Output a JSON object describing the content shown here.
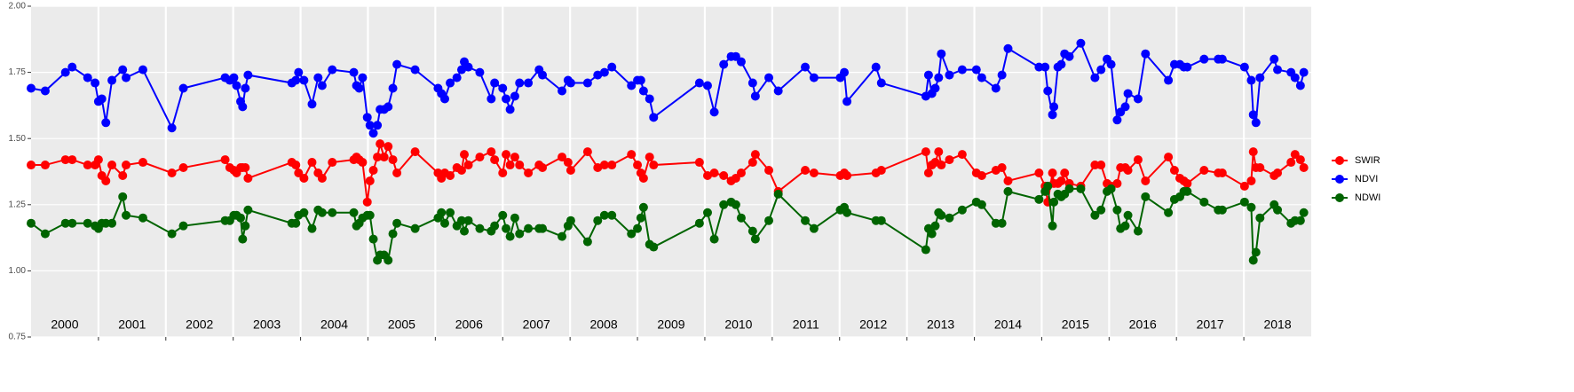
{
  "chart_data": {
    "type": "line",
    "x": [
      2000.0,
      2000.21,
      2000.51,
      2000.61,
      2000.84,
      2000.95,
      2001.0,
      2001.05,
      2001.11,
      2001.2,
      2001.36,
      2001.41,
      2001.66,
      2002.09,
      2002.26,
      2002.88,
      2002.95,
      2003.01,
      2003.05,
      2003.11,
      2003.14,
      2003.18,
      2003.22,
      2003.87,
      2003.93,
      2003.97,
      2004.05,
      2004.17,
      2004.26,
      2004.32,
      2004.47,
      2004.79,
      2004.83,
      2004.87,
      2004.92,
      2004.99,
      2005.03,
      2005.08,
      2005.14,
      2005.18,
      2005.24,
      2005.3,
      2005.37,
      2005.43,
      2005.7,
      2006.04,
      2006.09,
      2006.14,
      2006.22,
      2006.32,
      2006.39,
      2006.43,
      2006.49,
      2006.66,
      2006.83,
      2006.88,
      2007.0,
      2007.05,
      2007.11,
      2007.18,
      2007.25,
      2007.38,
      2007.54,
      2007.59,
      2007.88,
      2007.97,
      2008.01,
      2008.26,
      2008.41,
      2008.51,
      2008.62,
      2008.91,
      2009.0,
      2009.05,
      2009.09,
      2009.18,
      2009.24,
      2009.92,
      2010.04,
      2010.14,
      2010.28,
      2010.39,
      2010.46,
      2010.54,
      2010.71,
      2010.75,
      2010.95,
      2011.09,
      2011.49,
      2011.62,
      2012.01,
      2012.07,
      2012.11,
      2012.54,
      2012.62,
      2013.28,
      2013.32,
      2013.37,
      2013.42,
      2013.47,
      2013.51,
      2013.63,
      2013.82,
      2014.03,
      2014.11,
      2014.32,
      2014.41,
      2014.5,
      2014.96,
      2015.05,
      2015.09,
      2015.16,
      2015.18,
      2015.24,
      2015.29,
      2015.34,
      2015.41,
      2015.58,
      2015.79,
      2015.88,
      2015.97,
      2016.03,
      2016.12,
      2016.17,
      2016.24,
      2016.28,
      2016.43,
      2016.54,
      2016.88,
      2016.97,
      2017.05,
      2017.11,
      2017.16,
      2017.41,
      2017.62,
      2017.68,
      2018.01,
      2018.11,
      2018.14,
      2018.18,
      2018.24,
      2018.45,
      2018.5,
      2018.7,
      2018.76,
      2018.84,
      2018.89
    ],
    "series": [
      {
        "name": "SWIR",
        "color": "#ff0000",
        "values": [
          1.4,
          1.4,
          1.42,
          1.42,
          1.4,
          1.4,
          1.42,
          1.36,
          1.34,
          1.4,
          1.36,
          1.4,
          1.41,
          1.37,
          1.39,
          1.42,
          1.39,
          1.38,
          1.37,
          1.39,
          1.39,
          1.39,
          1.35,
          1.41,
          1.4,
          1.37,
          1.35,
          1.41,
          1.37,
          1.35,
          1.41,
          1.42,
          1.43,
          1.42,
          1.41,
          1.26,
          1.34,
          1.38,
          1.43,
          1.48,
          1.43,
          1.47,
          1.42,
          1.37,
          1.45,
          1.37,
          1.35,
          1.37,
          1.36,
          1.39,
          1.38,
          1.44,
          1.4,
          1.43,
          1.45,
          1.42,
          1.37,
          1.44,
          1.4,
          1.43,
          1.4,
          1.37,
          1.4,
          1.39,
          1.43,
          1.41,
          1.38,
          1.45,
          1.39,
          1.4,
          1.4,
          1.44,
          1.4,
          1.37,
          1.35,
          1.43,
          1.4,
          1.41,
          1.36,
          1.37,
          1.36,
          1.34,
          1.35,
          1.37,
          1.41,
          1.44,
          1.38,
          1.3,
          1.38,
          1.37,
          1.36,
          1.37,
          1.36,
          1.37,
          1.38,
          1.45,
          1.37,
          1.4,
          1.41,
          1.45,
          1.4,
          1.42,
          1.44,
          1.37,
          1.36,
          1.38,
          1.39,
          1.34,
          1.37,
          1.32,
          1.26,
          1.37,
          1.33,
          1.33,
          1.34,
          1.37,
          1.33,
          1.32,
          1.4,
          1.4,
          1.33,
          1.32,
          1.33,
          1.39,
          1.39,
          1.38,
          1.42,
          1.34,
          1.43,
          1.38,
          1.35,
          1.34,
          1.33,
          1.38,
          1.37,
          1.37,
          1.32,
          1.34,
          1.45,
          1.39,
          1.39,
          1.36,
          1.37,
          1.41,
          1.44,
          1.42,
          1.39
        ]
      },
      {
        "name": "NDVI",
        "color": "#0000ff",
        "values": [
          1.69,
          1.68,
          1.75,
          1.77,
          1.73,
          1.71,
          1.64,
          1.65,
          1.56,
          1.72,
          1.76,
          1.73,
          1.76,
          1.54,
          1.69,
          1.73,
          1.72,
          1.73,
          1.7,
          1.64,
          1.62,
          1.69,
          1.74,
          1.71,
          1.72,
          1.75,
          1.72,
          1.63,
          1.73,
          1.7,
          1.76,
          1.75,
          1.7,
          1.69,
          1.73,
          1.58,
          1.55,
          1.52,
          1.55,
          1.61,
          1.61,
          1.62,
          1.69,
          1.78,
          1.76,
          1.69,
          1.67,
          1.65,
          1.71,
          1.73,
          1.76,
          1.79,
          1.77,
          1.75,
          1.65,
          1.71,
          1.69,
          1.65,
          1.61,
          1.66,
          1.71,
          1.71,
          1.76,
          1.74,
          1.68,
          1.72,
          1.71,
          1.71,
          1.74,
          1.75,
          1.77,
          1.7,
          1.72,
          1.72,
          1.68,
          1.65,
          1.58,
          1.71,
          1.7,
          1.6,
          1.78,
          1.81,
          1.81,
          1.79,
          1.71,
          1.66,
          1.73,
          1.68,
          1.77,
          1.73,
          1.73,
          1.75,
          1.64,
          1.77,
          1.71,
          1.66,
          1.74,
          1.67,
          1.69,
          1.73,
          1.82,
          1.74,
          1.76,
          1.76,
          1.73,
          1.69,
          1.74,
          1.84,
          1.77,
          1.77,
          1.68,
          1.59,
          1.62,
          1.77,
          1.78,
          1.82,
          1.81,
          1.86,
          1.73,
          1.76,
          1.8,
          1.78,
          1.57,
          1.6,
          1.62,
          1.67,
          1.65,
          1.82,
          1.72,
          1.78,
          1.78,
          1.77,
          1.77,
          1.8,
          1.8,
          1.8,
          1.77,
          1.72,
          1.59,
          1.56,
          1.73,
          1.8,
          1.76,
          1.75,
          1.73,
          1.7,
          1.75
        ]
      },
      {
        "name": "NDWI",
        "color": "#006400",
        "values": [
          1.18,
          1.14,
          1.18,
          1.18,
          1.18,
          1.17,
          1.16,
          1.18,
          1.18,
          1.18,
          1.28,
          1.21,
          1.2,
          1.14,
          1.17,
          1.19,
          1.19,
          1.21,
          1.21,
          1.2,
          1.12,
          1.17,
          1.23,
          1.18,
          1.18,
          1.21,
          1.22,
          1.16,
          1.23,
          1.22,
          1.22,
          1.22,
          1.17,
          1.18,
          1.2,
          1.21,
          1.21,
          1.12,
          1.04,
          1.06,
          1.06,
          1.04,
          1.14,
          1.18,
          1.16,
          1.2,
          1.22,
          1.18,
          1.22,
          1.17,
          1.19,
          1.15,
          1.19,
          1.16,
          1.15,
          1.17,
          1.21,
          1.16,
          1.13,
          1.2,
          1.14,
          1.16,
          1.16,
          1.16,
          1.13,
          1.17,
          1.19,
          1.11,
          1.19,
          1.21,
          1.21,
          1.14,
          1.16,
          1.2,
          1.24,
          1.1,
          1.09,
          1.18,
          1.22,
          1.12,
          1.25,
          1.26,
          1.25,
          1.2,
          1.15,
          1.12,
          1.19,
          1.29,
          1.19,
          1.16,
          1.23,
          1.24,
          1.22,
          1.19,
          1.19,
          1.08,
          1.16,
          1.14,
          1.17,
          1.22,
          1.21,
          1.2,
          1.23,
          1.26,
          1.25,
          1.18,
          1.18,
          1.3,
          1.27,
          1.3,
          1.32,
          1.17,
          1.26,
          1.29,
          1.28,
          1.29,
          1.31,
          1.31,
          1.21,
          1.23,
          1.3,
          1.31,
          1.23,
          1.16,
          1.17,
          1.21,
          1.15,
          1.28,
          1.22,
          1.27,
          1.28,
          1.3,
          1.3,
          1.26,
          1.23,
          1.23,
          1.26,
          1.24,
          1.04,
          1.07,
          1.2,
          1.25,
          1.23,
          1.18,
          1.19,
          1.19,
          1.22
        ]
      }
    ],
    "xlim": [
      2000,
      2019
    ],
    "xticks": [
      {
        "value": 2000.5,
        "label": "2000"
      },
      {
        "value": 2001.5,
        "label": "2001"
      },
      {
        "value": 2002.5,
        "label": "2002"
      },
      {
        "value": 2003.5,
        "label": "2003"
      },
      {
        "value": 2004.5,
        "label": "2004"
      },
      {
        "value": 2005.5,
        "label": "2005"
      },
      {
        "value": 2006.5,
        "label": "2006"
      },
      {
        "value": 2007.5,
        "label": "2007"
      },
      {
        "value": 2008.5,
        "label": "2008"
      },
      {
        "value": 2009.5,
        "label": "2009"
      },
      {
        "value": 2010.5,
        "label": "2010"
      },
      {
        "value": 2011.5,
        "label": "2011"
      },
      {
        "value": 2012.5,
        "label": "2012"
      },
      {
        "value": 2013.5,
        "label": "2013"
      },
      {
        "value": 2014.5,
        "label": "2014"
      },
      {
        "value": 2015.5,
        "label": "2015"
      },
      {
        "value": 2016.5,
        "label": "2016"
      },
      {
        "value": 2017.5,
        "label": "2017"
      },
      {
        "value": 2018.5,
        "label": "2018"
      }
    ],
    "xgrid": [
      2001,
      2002,
      2003,
      2004,
      2005,
      2006,
      2007,
      2008,
      2009,
      2010,
      2011,
      2012,
      2013,
      2014,
      2015,
      2016,
      2017,
      2018
    ],
    "ylim": [
      0.75,
      2.0
    ],
    "yticks": [
      {
        "value": 0.75,
        "label": "0.75"
      },
      {
        "value": 1.0,
        "label": "1.00"
      },
      {
        "value": 1.25,
        "label": "1.25"
      },
      {
        "value": 1.5,
        "label": "1.50"
      },
      {
        "value": 1.75,
        "label": "1.75"
      },
      {
        "value": 2.0,
        "label": "2.00"
      }
    ],
    "grid": true,
    "legend": "right"
  }
}
